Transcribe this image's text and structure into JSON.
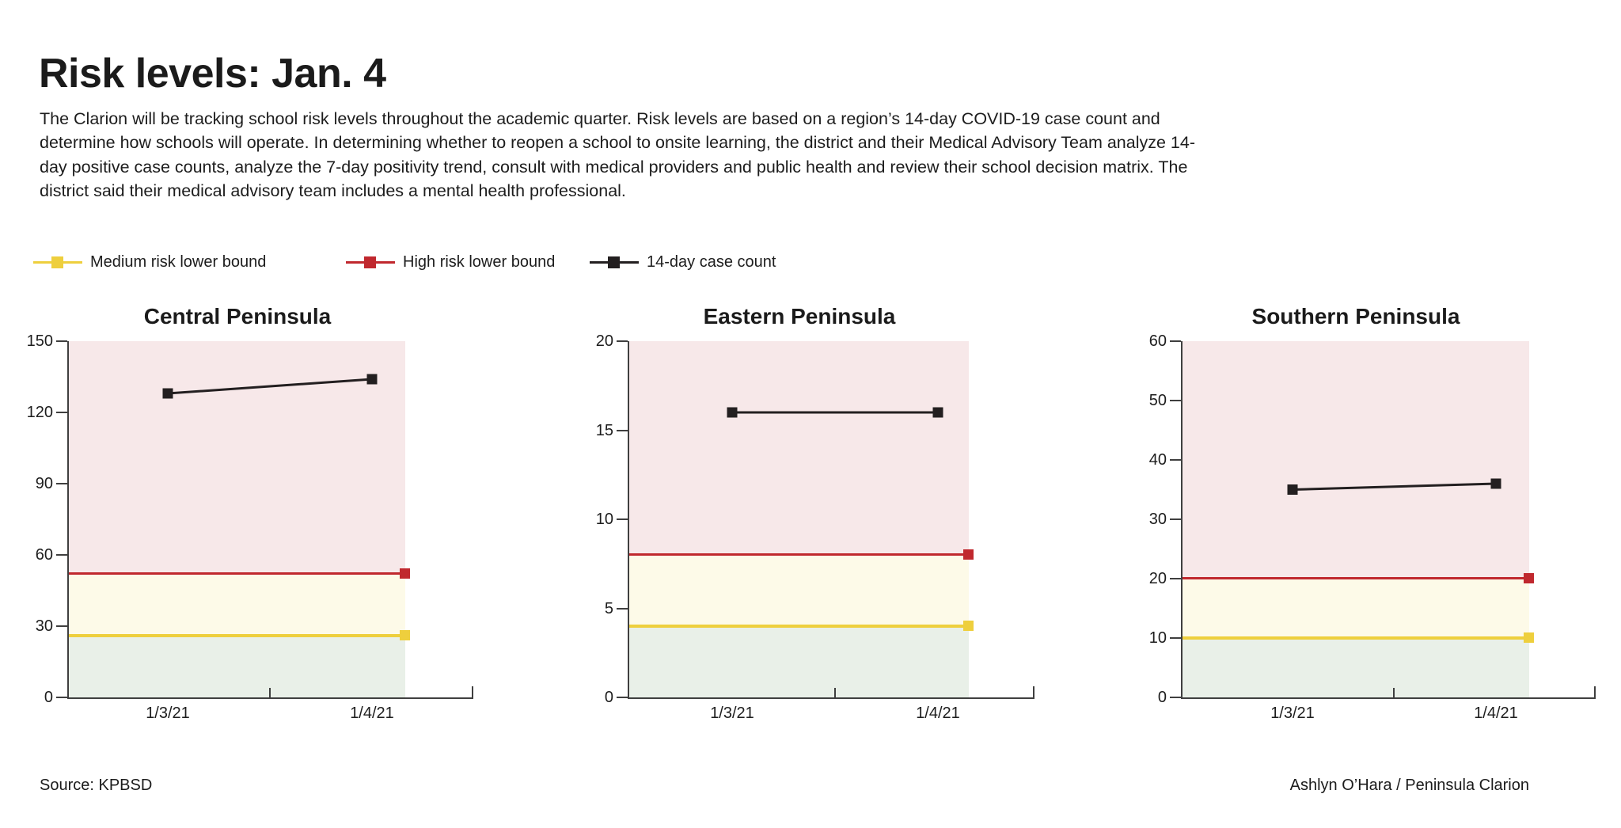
{
  "page": {
    "title": "Risk levels: Jan. 4",
    "description": "The Clarion will be tracking school risk levels throughout the academic quarter. Risk levels are based on a region’s 14-day COVID-19 case count and determine how schools will operate. In determining whether to reopen a school to onsite learning, the district and their Medical Advisory Team analyze 14-day positive case counts, analyze the 7-day positivity trend, consult with medical providers and public health and review their school decision matrix. The district said their medical advisory team includes a mental health professional.",
    "source": "Source: KPBSD",
    "credit": "Ashlyn O’Hara / Peninsula Clarion"
  },
  "legend": [
    {
      "label": "Medium risk lower bound",
      "color": "#eecf3d"
    },
    {
      "label": "High risk lower bound",
      "color": "#c0282e"
    },
    {
      "label": "14-day case count",
      "color": "#231f20"
    }
  ],
  "colors": {
    "high_zone": "#f7e8e9",
    "medium_zone": "#fdfae8",
    "low_zone": "#e9f0e8",
    "high_line": "#c0282e",
    "medium_line": "#eecf3d",
    "case_line": "#231f20",
    "axis": "#3f3f3f",
    "text": "#1d1d1d"
  },
  "chart_data": [
    {
      "type": "line",
      "title": "Central Peninsula",
      "x": [
        "1/3/21",
        "1/4/21"
      ],
      "series_label": "14-day case count",
      "values": [
        128,
        134
      ],
      "medium_risk_lower_bound": 26,
      "high_risk_lower_bound": 52,
      "ylim": [
        0,
        150
      ],
      "yticks": [
        0,
        30,
        60,
        90,
        120,
        150
      ],
      "grid": false,
      "legend_position": "top"
    },
    {
      "type": "line",
      "title": "Eastern Peninsula",
      "x": [
        "1/3/21",
        "1/4/21"
      ],
      "series_label": "14-day case count",
      "values": [
        16,
        16
      ],
      "medium_risk_lower_bound": 4,
      "high_risk_lower_bound": 8,
      "ylim": [
        0,
        20
      ],
      "yticks": [
        0,
        5,
        10,
        15,
        20
      ],
      "grid": false,
      "legend_position": "top"
    },
    {
      "type": "line",
      "title": "Southern Peninsula",
      "x": [
        "1/3/21",
        "1/4/21"
      ],
      "series_label": "14-day case count",
      "values": [
        35,
        36
      ],
      "medium_risk_lower_bound": 10,
      "high_risk_lower_bound": 20,
      "ylim": [
        0,
        60
      ],
      "yticks": [
        0,
        10,
        20,
        30,
        40,
        50,
        60
      ],
      "grid": false,
      "legend_position": "top"
    }
  ]
}
